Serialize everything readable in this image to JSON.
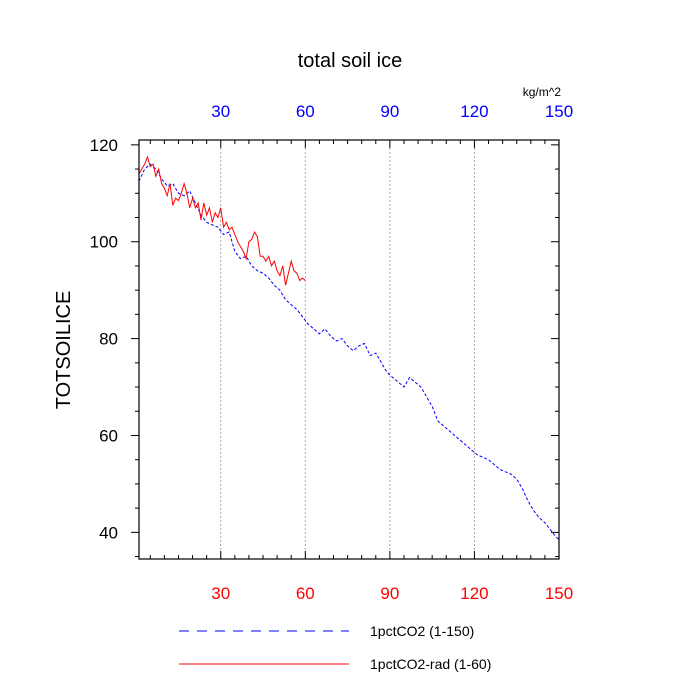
{
  "chart_data": {
    "type": "line",
    "title": "total soil ice",
    "ylabel": "TOTSOILICE",
    "units_label": "kg/m^2",
    "xlim": [
      1,
      150
    ],
    "ylim": [
      34.5,
      121
    ],
    "x_ticks": [
      30,
      60,
      90,
      120,
      150
    ],
    "y_ticks": [
      40,
      60,
      80,
      100,
      120
    ],
    "y_minor_step": 5,
    "x_minor_step": 5,
    "top_tick_color": "#0000ff",
    "bottom_tick_color": "#ff0000",
    "grid": "vertical dashed at major x ticks",
    "legend_position": "bottom",
    "series": [
      {
        "name": "1pctCO2 (1-150)",
        "color": "#0000ff",
        "style": "dashed",
        "x": [
          1,
          3,
          5,
          7,
          9,
          11,
          13,
          15,
          17,
          19,
          21,
          23,
          25,
          27,
          29,
          31,
          33,
          35,
          37,
          39,
          41,
          43,
          45,
          47,
          49,
          51,
          53,
          55,
          57,
          59,
          61,
          63,
          65,
          67,
          69,
          71,
          73,
          75,
          77,
          79,
          81,
          83,
          85,
          87,
          89,
          91,
          93,
          95,
          97,
          99,
          101,
          103,
          105,
          107,
          109,
          111,
          113,
          115,
          117,
          119,
          121,
          123,
          125,
          127,
          129,
          131,
          133,
          135,
          137,
          139,
          141,
          143,
          145,
          147,
          149,
          150
        ],
        "values": [
          112.5,
          115,
          116,
          115,
          113,
          111.5,
          112,
          110,
          109.5,
          110.5,
          108,
          105.5,
          104,
          103.5,
          103,
          101.5,
          102,
          98,
          96.5,
          97,
          95,
          94,
          93.5,
          92.5,
          91,
          90,
          88,
          87,
          86,
          84.5,
          83,
          82,
          81,
          82,
          80.5,
          79.5,
          80,
          78.5,
          77.5,
          78.5,
          79,
          76.5,
          77,
          75,
          73,
          72,
          71,
          70,
          72,
          71,
          70,
          68,
          66,
          63,
          62,
          61,
          60,
          59,
          58,
          57,
          56,
          55.5,
          55,
          54,
          53,
          52.5,
          52,
          51,
          49,
          46.5,
          44.5,
          43,
          42,
          40.5,
          39,
          38.5
        ]
      },
      {
        "name": "1pctCO2-rad (1-60)",
        "color": "#ff0000",
        "style": "solid",
        "x": [
          1,
          3,
          4,
          5,
          6,
          7,
          8,
          9,
          10,
          11,
          12,
          13,
          14,
          15,
          16,
          17,
          18,
          19,
          20,
          21,
          22,
          23,
          24,
          25,
          26,
          27,
          28,
          29,
          30,
          31,
          32,
          33,
          34,
          35,
          36,
          37,
          38,
          39,
          40,
          41,
          42,
          43,
          44,
          45,
          46,
          47,
          48,
          49,
          50,
          51,
          52,
          53,
          54,
          55,
          56,
          57,
          58,
          59,
          60
        ],
        "values": [
          114,
          116,
          117.5,
          115.5,
          116,
          113.5,
          115,
          112,
          111,
          109.5,
          112,
          107.5,
          109,
          108.5,
          110,
          112,
          110,
          107,
          109,
          107,
          108,
          104.5,
          108,
          105.5,
          107,
          104,
          106,
          105,
          107,
          103,
          104,
          102.5,
          103,
          101.5,
          100,
          99,
          98,
          96.5,
          100,
          100.5,
          102,
          101,
          97,
          97,
          96,
          97,
          95,
          96,
          94,
          93,
          95,
          91,
          93.5,
          96,
          94,
          93.5,
          92,
          92.5,
          92
        ]
      }
    ]
  }
}
